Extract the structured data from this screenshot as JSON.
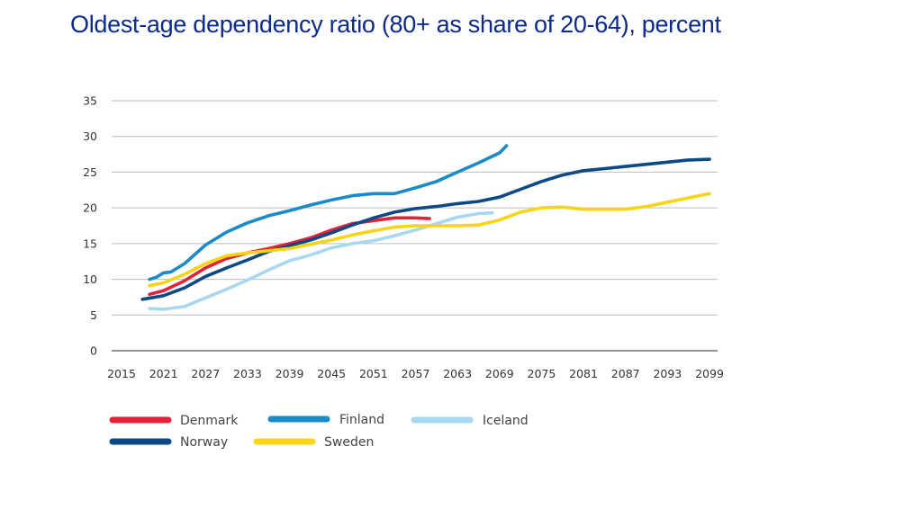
{
  "chart_data": {
    "type": "line",
    "title": "Oldest-age dependency ratio (80+ as share of 20-64), percent",
    "xlabel": "",
    "ylabel": "",
    "xlim": [
      2015,
      2099
    ],
    "ylim": [
      0,
      35
    ],
    "x_ticks": [
      "2015",
      "2021",
      "2027",
      "2033",
      "2039",
      "2045",
      "2051",
      "2057",
      "2063",
      "2069",
      "2075",
      "2081",
      "2087",
      "2093",
      "2099"
    ],
    "y_ticks": [
      "0",
      "5",
      "10",
      "15",
      "20",
      "25",
      "30",
      "35"
    ],
    "grid": "horizontal",
    "legend_position": "bottom-left",
    "series": [
      {
        "name": "Denmark",
        "color": "#e0223a",
        "x": [
          2019,
          2021,
          2024,
          2027,
          2030,
          2033,
          2036,
          2039,
          2042,
          2045,
          2048,
          2051,
          2054,
          2057,
          2059
        ],
        "y": [
          7.9,
          8.4,
          9.8,
          11.6,
          12.9,
          13.7,
          14.3,
          15.0,
          15.8,
          16.9,
          17.8,
          18.2,
          18.6,
          18.6,
          18.5
        ]
      },
      {
        "name": "Finland",
        "color": "#1a8ac8",
        "x": [
          2019,
          2020,
          2021,
          2022,
          2024,
          2027,
          2030,
          2033,
          2036,
          2039,
          2042,
          2045,
          2048,
          2051,
          2054,
          2057,
          2060,
          2063,
          2066,
          2069,
          2070
        ],
        "y": [
          10.0,
          10.3,
          10.9,
          11.0,
          12.2,
          14.8,
          16.6,
          17.9,
          18.9,
          19.6,
          20.4,
          21.1,
          21.7,
          22.0,
          22.0,
          22.8,
          23.7,
          25.0,
          26.3,
          27.7,
          28.7
        ]
      },
      {
        "name": "Iceland",
        "color": "#a8d8f0",
        "x": [
          2019,
          2021,
          2024,
          2027,
          2030,
          2033,
          2036,
          2039,
          2042,
          2045,
          2048,
          2051,
          2054,
          2057,
          2060,
          2063,
          2066,
          2068
        ],
        "y": [
          5.9,
          5.8,
          6.2,
          7.4,
          8.6,
          9.9,
          11.3,
          12.6,
          13.4,
          14.4,
          15.0,
          15.4,
          16.1,
          16.9,
          17.8,
          18.7,
          19.2,
          19.3
        ]
      },
      {
        "name": "Norway",
        "color": "#0d4a85",
        "x": [
          2018,
          2021,
          2024,
          2027,
          2030,
          2033,
          2036,
          2039,
          2042,
          2045,
          2048,
          2051,
          2054,
          2057,
          2060,
          2063,
          2066,
          2069,
          2072,
          2075,
          2078,
          2081,
          2084,
          2087,
          2090,
          2093,
          2096,
          2099
        ],
        "y": [
          7.2,
          7.7,
          8.8,
          10.4,
          11.6,
          12.7,
          13.9,
          14.7,
          15.5,
          16.5,
          17.6,
          18.6,
          19.4,
          19.9,
          20.2,
          20.6,
          20.9,
          21.5,
          22.6,
          23.7,
          24.6,
          25.2,
          25.5,
          25.8,
          26.1,
          26.4,
          26.7,
          26.8
        ]
      },
      {
        "name": "Sweden",
        "color": "#f7d417",
        "x": [
          2019,
          2021,
          2024,
          2027,
          2030,
          2033,
          2036,
          2039,
          2042,
          2045,
          2048,
          2051,
          2054,
          2057,
          2060,
          2063,
          2066,
          2069,
          2072,
          2075,
          2078,
          2081,
          2084,
          2087,
          2090,
          2093,
          2096,
          2099
        ],
        "y": [
          9.1,
          9.5,
          10.7,
          12.2,
          13.3,
          13.7,
          14.0,
          14.3,
          14.9,
          15.5,
          16.2,
          16.8,
          17.3,
          17.5,
          17.5,
          17.5,
          17.6,
          18.3,
          19.4,
          20.0,
          20.1,
          19.8,
          19.8,
          19.8,
          20.2,
          20.8,
          21.4,
          22.0
        ]
      }
    ]
  }
}
